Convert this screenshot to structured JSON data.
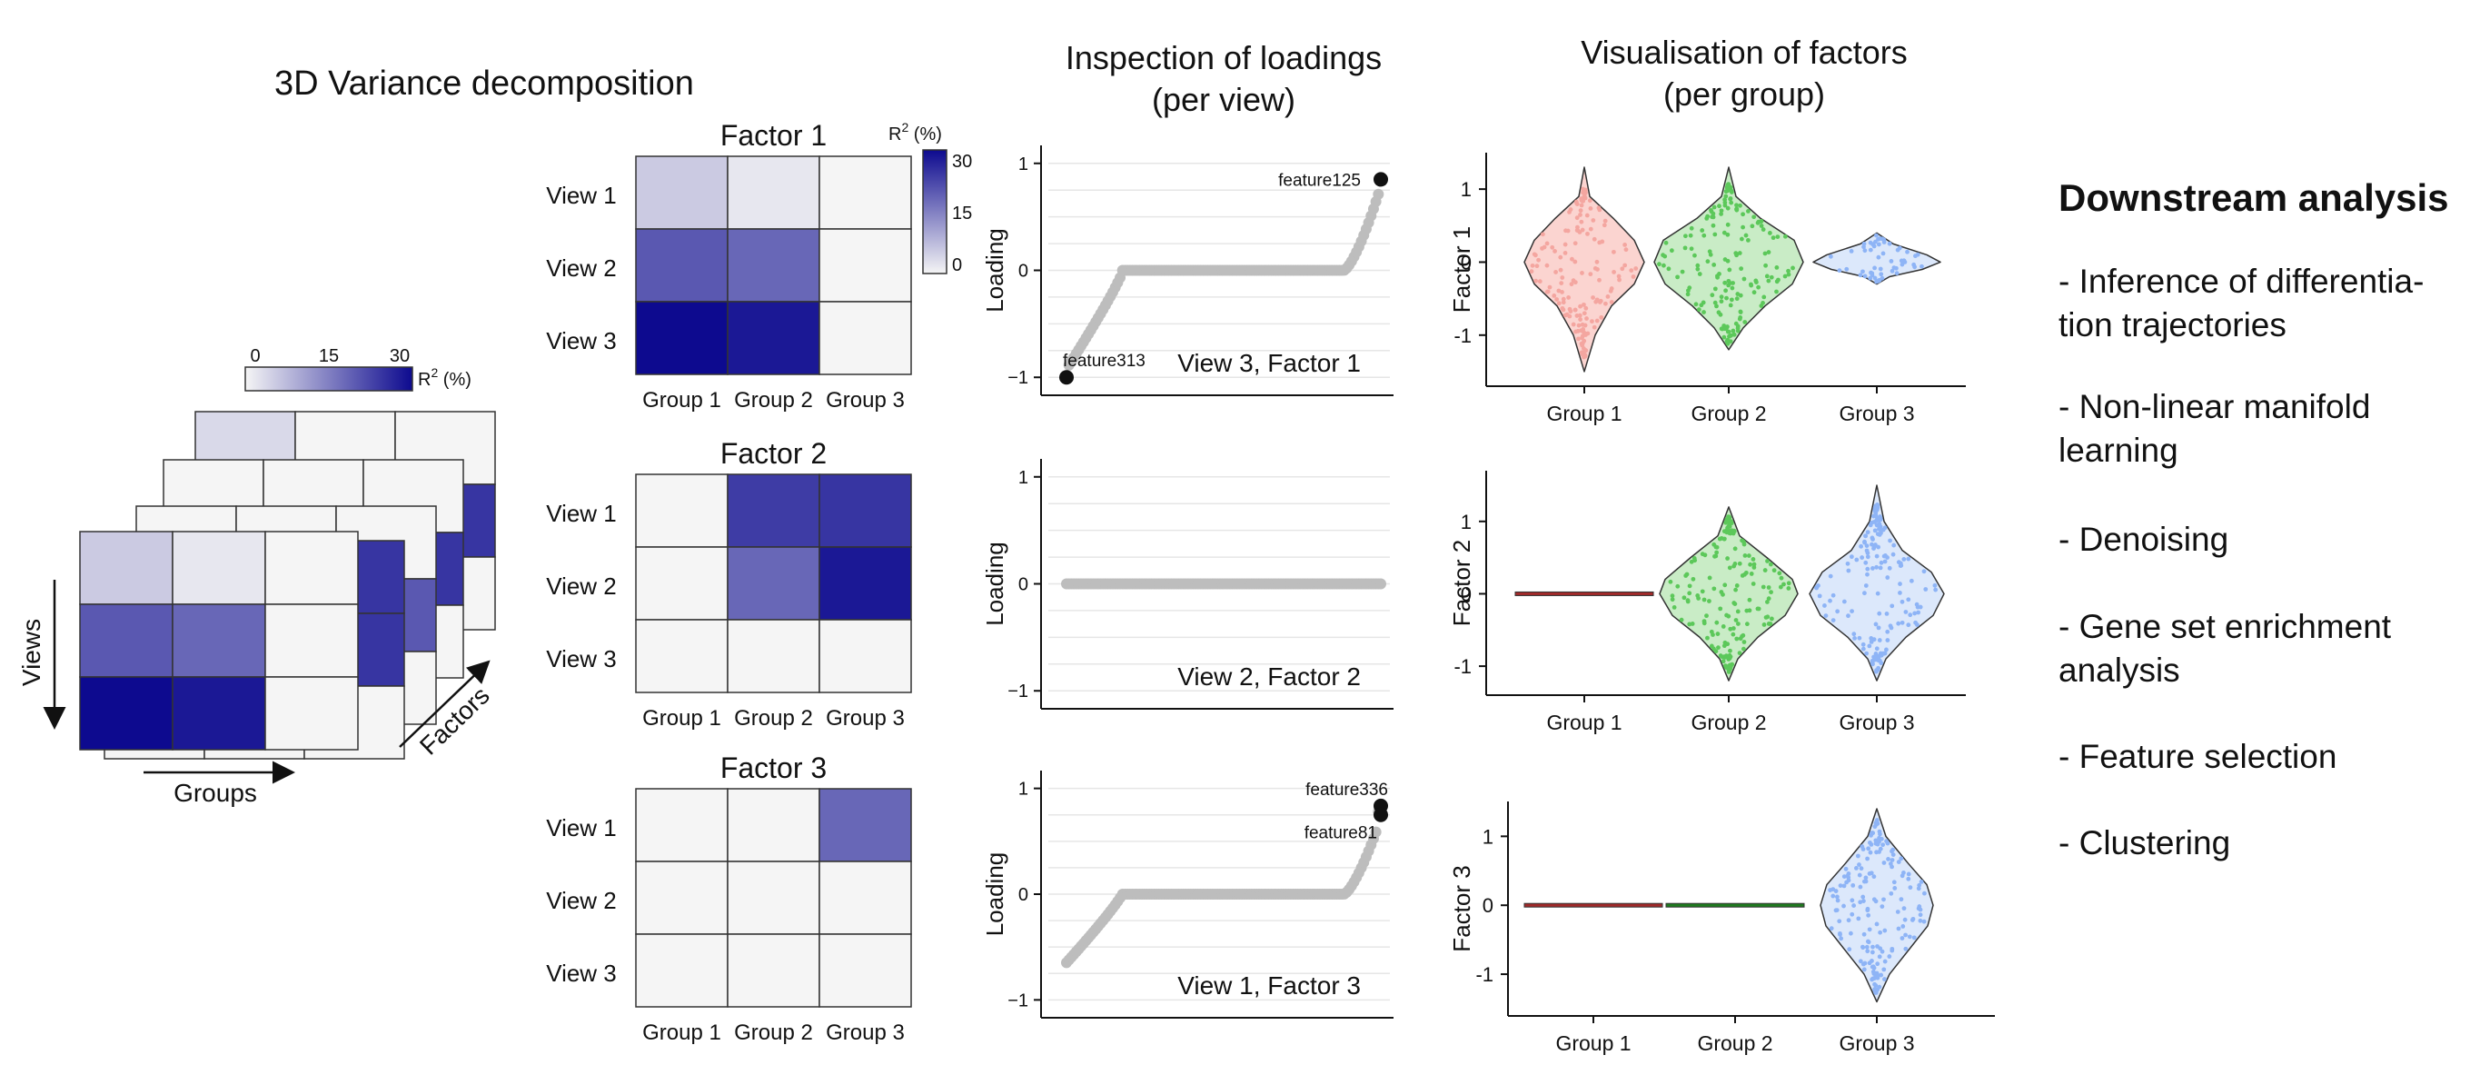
{
  "section_titles": {
    "variance": "3D Variance decomposition",
    "loadings_line1": "Inspection of loadings",
    "loadings_line2": "(per view)",
    "factors_line1": "Visualisation of factors",
    "factors_line2": "(per group)"
  },
  "cube": {
    "scale_ticks": [
      "0",
      "15",
      "30"
    ],
    "scale_label": "R",
    "scale_sup": "2",
    "scale_unit": " (%)",
    "views_label": "Views",
    "groups_label": "Groups",
    "factors_label": "Factors",
    "front_values": [
      [
        6,
        2,
        0
      ],
      [
        22,
        20,
        0
      ],
      [
        33,
        31,
        0
      ]
    ],
    "back_values": [
      [
        [
          4,
          0,
          0
        ],
        [
          0,
          27,
          27
        ],
        [
          0,
          0,
          0
        ]
      ],
      [
        [
          0,
          0,
          0
        ],
        [
          0,
          20,
          27
        ],
        [
          0,
          0,
          0
        ]
      ],
      [
        [
          0,
          0,
          0
        ],
        [
          0,
          22,
          22
        ],
        [
          0,
          0,
          0
        ]
      ],
      [
        [
          0,
          20,
          27
        ],
        [
          0,
          0,
          27
        ],
        [
          0,
          0,
          0
        ]
      ]
    ]
  },
  "heatmaps": {
    "color_min": "#f5f5f5",
    "color_max": "#0d0a8f",
    "vmax": 33,
    "legend_label": "R",
    "legend_sup": "2",
    "legend_unit": " (%)",
    "legend_ticks": [
      "30",
      "15",
      "0"
    ],
    "rows": [
      "View 1",
      "View 2",
      "View 3"
    ],
    "cols": [
      "Group 1",
      "Group 2",
      "Group 3"
    ],
    "panels": [
      {
        "title": "Factor 1",
        "values": [
          [
            6,
            2,
            0
          ],
          [
            22,
            20,
            0
          ],
          [
            33,
            31,
            0
          ]
        ]
      },
      {
        "title": "Factor 2",
        "values": [
          [
            0,
            26,
            27
          ],
          [
            0,
            20,
            31
          ],
          [
            0,
            0,
            0
          ]
        ]
      },
      {
        "title": "Factor 3",
        "values": [
          [
            0,
            0,
            20
          ],
          [
            0,
            0,
            0
          ],
          [
            0,
            0,
            0
          ]
        ]
      }
    ]
  },
  "chart_data": [
    {
      "type": "scatter",
      "title": "View 3, Factor 1",
      "ylabel": "Loading",
      "yticks": [
        "1",
        "0",
        "−1"
      ],
      "ylim": [
        -1.1,
        1.1
      ],
      "annotations": [
        {
          "label": "feature125",
          "value": 0.85,
          "rank": "max"
        },
        {
          "label": "feature313",
          "value": -1.0,
          "rank": "min"
        }
      ]
    },
    {
      "type": "scatter",
      "title": "View 2, Factor 2",
      "ylabel": "Loading",
      "yticks": [
        "1",
        "0",
        "−1"
      ],
      "ylim": [
        -1.1,
        1.1
      ],
      "annotations": []
    },
    {
      "type": "scatter",
      "title": "View 1, Factor 3",
      "ylabel": "Loading",
      "yticks": [
        "1",
        "0",
        "−1"
      ],
      "ylim": [
        -1.1,
        1.1
      ],
      "annotations": [
        {
          "label": "feature336",
          "value": 0.8,
          "rank": "max"
        },
        {
          "label": "feature81",
          "value": 0.75,
          "rank": "max"
        }
      ]
    },
    {
      "type": "violin",
      "ylabel": "Factor 1",
      "categories": [
        "Group 1",
        "Group 2",
        "Group 3"
      ],
      "yticks": [
        "1",
        "0",
        "-1"
      ],
      "ylim": [
        -1.6,
        1.4
      ],
      "colors": [
        "#f4a6a0",
        "#5cc85a",
        "#8eb4f6"
      ],
      "fills": [
        "#fbd4d0",
        "#c9ecc6",
        "#dce8fb"
      ]
    },
    {
      "type": "violin",
      "ylabel": "Factor 2",
      "categories": [
        "Group 1",
        "Group 2",
        "Group 3"
      ],
      "yticks": [
        "1",
        "0",
        "-1"
      ],
      "ylim": [
        -1.3,
        1.6
      ],
      "colors": [
        "#a02a2a",
        "#5cc85a",
        "#8eb4f6"
      ],
      "fills": [
        "#fbd4d0",
        "#c9ecc6",
        "#dce8fb"
      ]
    },
    {
      "type": "violin",
      "ylabel": "Factor 3",
      "categories": [
        "Group 1",
        "Group 2",
        "Group 3"
      ],
      "yticks": [
        "1",
        "0",
        "-1"
      ],
      "ylim": [
        -1.5,
        1.4
      ],
      "colors": [
        "#a02a2a",
        "#1f7a1f",
        "#8eb4f6"
      ],
      "fills": [
        "#fbd4d0",
        "#c9ecc6",
        "#dce8fb"
      ]
    }
  ],
  "downstream": {
    "heading": "Downstream analysis",
    "items": [
      [
        "- Inference of differentia-",
        "tion trajectories"
      ],
      [
        "- Non-linear manifold",
        "learning"
      ],
      [
        "- Denoising"
      ],
      [
        "- Gene set enrichment",
        "analysis"
      ],
      [
        "- Feature selection"
      ],
      [
        "- Clustering"
      ]
    ]
  }
}
